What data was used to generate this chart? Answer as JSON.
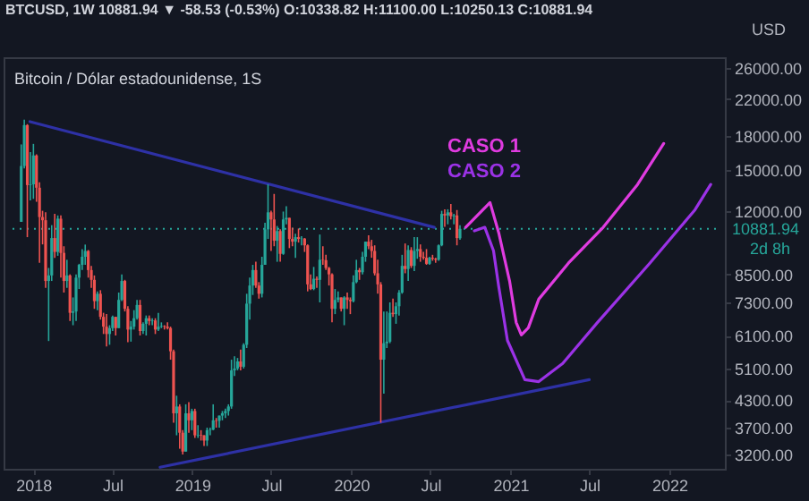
{
  "chart_data": {
    "type": "candlestick",
    "title": "BTCUSD, 1W  10881.94 ▼ -58.53 (-0.53%)  O:10338.82  H:11100.00  L:10250.13  C:10881.94",
    "subtitle": "Bitcoin / Dólar estadounidense, 1S",
    "ylabel": "USD",
    "log": true,
    "grid": false,
    "x": [
      "2017-12-04",
      "2017-12-11",
      "2017-12-18",
      "2017-12-25",
      "2018-01-01",
      "2018-01-08",
      "2018-01-15",
      "2018-01-22",
      "2018-01-29",
      "2018-02-05",
      "2018-02-12",
      "2018-02-19",
      "2018-02-26",
      "2018-03-05",
      "2018-03-12",
      "2018-03-19",
      "2018-03-26",
      "2018-04-02",
      "2018-04-09",
      "2018-04-16",
      "2018-04-23",
      "2018-04-30",
      "2018-05-07",
      "2018-05-14",
      "2018-05-21",
      "2018-05-28",
      "2018-06-04",
      "2018-06-11",
      "2018-06-18",
      "2018-06-25",
      "2018-07-02",
      "2018-07-09",
      "2018-07-16",
      "2018-07-23",
      "2018-07-30",
      "2018-08-06",
      "2018-08-13",
      "2018-08-20",
      "2018-08-27",
      "2018-09-03",
      "2018-09-10",
      "2018-09-17",
      "2018-09-24",
      "2018-10-01",
      "2018-10-08",
      "2018-10-15",
      "2018-10-22",
      "2018-10-29",
      "2018-11-05",
      "2018-11-12",
      "2018-11-19",
      "2018-11-26",
      "2018-12-03",
      "2018-12-10",
      "2018-12-17",
      "2018-12-24",
      "2018-12-31",
      "2019-01-07",
      "2019-01-14",
      "2019-01-21",
      "2019-01-28",
      "2019-02-04",
      "2019-02-11",
      "2019-02-18",
      "2019-02-25",
      "2019-03-04",
      "2019-03-11",
      "2019-03-18",
      "2019-03-25",
      "2019-04-01",
      "2019-04-08",
      "2019-04-15",
      "2019-04-22",
      "2019-04-29",
      "2019-05-06",
      "2019-05-13",
      "2019-05-20",
      "2019-05-27",
      "2019-06-03",
      "2019-06-10",
      "2019-06-17",
      "2019-06-24",
      "2019-07-01",
      "2019-07-08",
      "2019-07-15",
      "2019-07-22",
      "2019-07-29",
      "2019-08-05",
      "2019-08-12",
      "2019-08-19",
      "2019-08-26",
      "2019-09-02",
      "2019-09-09",
      "2019-09-16",
      "2019-09-23",
      "2019-09-30",
      "2019-10-07",
      "2019-10-14",
      "2019-10-21",
      "2019-10-28",
      "2019-11-04",
      "2019-11-11",
      "2019-11-18",
      "2019-11-25",
      "2019-12-02",
      "2019-12-09",
      "2019-12-16",
      "2019-12-23",
      "2019-12-30",
      "2020-01-06",
      "2020-01-13",
      "2020-01-20",
      "2020-01-27",
      "2020-02-03",
      "2020-02-10",
      "2020-02-17",
      "2020-02-24",
      "2020-03-02",
      "2020-03-09",
      "2020-03-16",
      "2020-03-23",
      "2020-03-30",
      "2020-04-06",
      "2020-04-13",
      "2020-04-20",
      "2020-04-27",
      "2020-05-04",
      "2020-05-11",
      "2020-05-18",
      "2020-05-25",
      "2020-06-01",
      "2020-06-08",
      "2020-06-15",
      "2020-06-22",
      "2020-06-29",
      "2020-07-06",
      "2020-07-13",
      "2020-07-20",
      "2020-07-27",
      "2020-08-03",
      "2020-08-10",
      "2020-08-17",
      "2020-08-24",
      "2020-08-31",
      "2020-09-07"
    ],
    "ohlc": [
      [
        11300,
        17200,
        11300,
        15300
      ],
      [
        15300,
        19666,
        15100,
        19100
      ],
      [
        19100,
        19200,
        10400,
        13800
      ],
      [
        13800,
        16500,
        12700,
        13850
      ],
      [
        13850,
        17250,
        12800,
        16200
      ],
      [
        16200,
        16300,
        12600,
        13600
      ],
      [
        13600,
        14000,
        9050,
        11600
      ],
      [
        11600,
        12000,
        10000,
        11400
      ],
      [
        11400,
        11900,
        7900,
        8200
      ],
      [
        8200,
        8800,
        5920,
        8450
      ],
      [
        8450,
        11100,
        8200,
        10350
      ],
      [
        10350,
        11800,
        9300,
        9600
      ],
      [
        9600,
        11700,
        9400,
        11500
      ],
      [
        11500,
        11700,
        8350,
        9550
      ],
      [
        9550,
        9900,
        7700,
        8200
      ],
      [
        8200,
        9200,
        7900,
        8450
      ],
      [
        8450,
        8500,
        6600,
        6900
      ],
      [
        6900,
        7500,
        6450,
        6950
      ],
      [
        6950,
        8500,
        6600,
        8350
      ],
      [
        8350,
        9000,
        7850,
        8950
      ],
      [
        8950,
        9750,
        8700,
        9350
      ],
      [
        9350,
        9990,
        8950,
        9650
      ],
      [
        9650,
        9700,
        8350,
        8700
      ],
      [
        8700,
        8900,
        7900,
        8250
      ],
      [
        8250,
        8450,
        7050,
        7350
      ],
      [
        7350,
        7750,
        7000,
        7650
      ],
      [
        7650,
        7800,
        6650,
        6750
      ],
      [
        6750,
        6900,
        6150,
        6400
      ],
      [
        6400,
        6850,
        5750,
        6150
      ],
      [
        6150,
        6450,
        5800,
        6350
      ],
      [
        6350,
        6800,
        6250,
        6750
      ],
      [
        6750,
        6750,
        6100,
        6350
      ],
      [
        6350,
        7700,
        6350,
        7400
      ],
      [
        7400,
        8500,
        7350,
        8200
      ],
      [
        8200,
        8250,
        6950,
        7050
      ],
      [
        7050,
        7150,
        5880,
        6300
      ],
      [
        6300,
        6600,
        5900,
        6400
      ],
      [
        6400,
        7000,
        6300,
        6700
      ],
      [
        6700,
        7400,
        6650,
        7200
      ],
      [
        7200,
        7400,
        6100,
        6250
      ],
      [
        6250,
        6550,
        6150,
        6500
      ],
      [
        6500,
        6800,
        6100,
        6700
      ],
      [
        6700,
        6800,
        6450,
        6600
      ],
      [
        6600,
        6700,
        6450,
        6620
      ],
      [
        6620,
        6700,
        6150,
        6300
      ],
      [
        6300,
        6900,
        6250,
        6400
      ],
      [
        6400,
        6550,
        6350,
        6420
      ],
      [
        6420,
        6450,
        6300,
        6400
      ],
      [
        6400,
        6550,
        6300,
        6350
      ],
      [
        6350,
        6400,
        5350,
        5600
      ],
      [
        5600,
        5650,
        3800,
        4000
      ],
      [
        4000,
        4400,
        3550,
        4150
      ],
      [
        4150,
        4200,
        3300,
        3600
      ],
      [
        3600,
        3650,
        3200,
        3250
      ],
      [
        3250,
        4200,
        3250,
        4000
      ],
      [
        4000,
        4250,
        3600,
        3850
      ],
      [
        3850,
        4100,
        3650,
        4050
      ],
      [
        4050,
        4100,
        3500,
        3550
      ],
      [
        3550,
        3750,
        3500,
        3560
      ],
      [
        3560,
        3650,
        3450,
        3550
      ],
      [
        3550,
        3550,
        3350,
        3450
      ],
      [
        3450,
        3700,
        3350,
        3650
      ],
      [
        3650,
        3700,
        3550,
        3660
      ],
      [
        3660,
        4200,
        3650,
        3850
      ],
      [
        3850,
        3900,
        3700,
        3840
      ],
      [
        3840,
        3950,
        3700,
        3950
      ],
      [
        3950,
        4050,
        3850,
        4000
      ],
      [
        4000,
        4100,
        3900,
        4050
      ],
      [
        4050,
        4200,
        3950,
        4150
      ],
      [
        4150,
        5350,
        4100,
        5050
      ],
      [
        5050,
        5450,
        4900,
        5100
      ],
      [
        5100,
        5400,
        5050,
        5300
      ],
      [
        5300,
        5650,
        5050,
        5150
      ],
      [
        5150,
        5850,
        5100,
        5800
      ],
      [
        5800,
        7650,
        5700,
        7250
      ],
      [
        7250,
        8350,
        6650,
        8000
      ],
      [
        8000,
        8950,
        7600,
        8700
      ],
      [
        8700,
        9100,
        7900,
        8000
      ],
      [
        8000,
        8150,
        7450,
        7650
      ],
      [
        7650,
        9350,
        7500,
        8950
      ],
      [
        8950,
        11250,
        8950,
        10850
      ],
      [
        10850,
        13850,
        10300,
        11900
      ],
      [
        11900,
        12000,
        9650,
        11450
      ],
      [
        11450,
        13150,
        9900,
        10200
      ],
      [
        10200,
        11050,
        9100,
        10750
      ],
      [
        10750,
        10850,
        9100,
        9500
      ],
      [
        9500,
        11950,
        9450,
        11450
      ],
      [
        11450,
        12300,
        11150,
        11550
      ],
      [
        11550,
        11550,
        9800,
        10300
      ],
      [
        10300,
        10950,
        9900,
        10150
      ],
      [
        10150,
        10600,
        9300,
        10400
      ],
      [
        10400,
        10900,
        10100,
        10300
      ],
      [
        10300,
        10450,
        9950,
        10320
      ],
      [
        10320,
        10350,
        9600,
        9950
      ],
      [
        9950,
        10000,
        7750,
        8050
      ],
      [
        8050,
        8500,
        7800,
        7850
      ],
      [
        7850,
        8850,
        7800,
        8300
      ],
      [
        8300,
        8400,
        7900,
        8250
      ],
      [
        8250,
        10550,
        7300,
        9200
      ],
      [
        9200,
        9900,
        8950,
        9180
      ],
      [
        9180,
        9450,
        8700,
        8800
      ],
      [
        8800,
        8850,
        8000,
        8500
      ],
      [
        8500,
        8550,
        6550,
        7050
      ],
      [
        7050,
        7850,
        6850,
        7400
      ],
      [
        7400,
        7750,
        7300,
        7500
      ],
      [
        7500,
        7500,
        6950,
        7050
      ],
      [
        7050,
        7550,
        6450,
        7500
      ],
      [
        7500,
        7700,
        7050,
        7400
      ],
      [
        7400,
        7500,
        6850,
        7350
      ],
      [
        7350,
        8450,
        7300,
        8150
      ],
      [
        8150,
        9200,
        8100,
        8700
      ],
      [
        8700,
        8800,
        8250,
        8600
      ],
      [
        8600,
        9600,
        8500,
        9350
      ],
      [
        9350,
        10150,
        9100,
        10150
      ],
      [
        10150,
        10500,
        9750,
        9900
      ],
      [
        9900,
        10250,
        9300,
        9650
      ],
      [
        9650,
        9950,
        8450,
        8550
      ],
      [
        8550,
        9200,
        7650,
        8050
      ],
      [
        8050,
        8150,
        3800,
        5350
      ],
      [
        5350,
        6950,
        4450,
        5850
      ],
      [
        5850,
        6950,
        5700,
        5900
      ],
      [
        5900,
        7300,
        5850,
        6900
      ],
      [
        6900,
        7450,
        6750,
        6850
      ],
      [
        6850,
        7300,
        6500,
        7150
      ],
      [
        7150,
        7800,
        6800,
        7700
      ],
      [
        7700,
        9450,
        7650,
        8900
      ],
      [
        8900,
        10050,
        8550,
        8750
      ],
      [
        8750,
        9950,
        8200,
        9700
      ],
      [
        9700,
        9850,
        8800,
        8900
      ],
      [
        8900,
        10400,
        8650,
        9650
      ],
      [
        9650,
        10400,
        9250,
        9750
      ],
      [
        9750,
        10000,
        9100,
        9350
      ],
      [
        9350,
        9600,
        9200,
        9300
      ],
      [
        9300,
        9750,
        8950,
        9000
      ],
      [
        9000,
        9350,
        8950,
        9300
      ],
      [
        9300,
        9450,
        9150,
        9250
      ],
      [
        9250,
        9300,
        9050,
        9200
      ],
      [
        9200,
        10000,
        9150,
        9950
      ],
      [
        9950,
        12000,
        9900,
        11800
      ],
      [
        11800,
        12100,
        11000,
        11700
      ],
      [
        11700,
        12100,
        11150,
        11900
      ],
      [
        11900,
        12450,
        11450,
        11650
      ],
      [
        11650,
        11800,
        11150,
        11700
      ],
      [
        11700,
        12050,
        9950,
        10350
      ],
      [
        10338.82,
        11100,
        10250.13,
        10881.94
      ]
    ],
    "colors": [
      "#26a69a",
      "#26a69a",
      "#ef5350",
      "#26a69a",
      "#26a69a",
      "#ef5350",
      "#ef5350",
      "#ef5350",
      "#ef5350",
      "#26a69a",
      "#26a69a",
      "#ef5350",
      "#26a69a",
      "#ef5350",
      "#ef5350",
      "#26a69a",
      "#ef5350",
      "#26a69a",
      "#26a69a",
      "#26a69a",
      "#26a69a",
      "#26a69a",
      "#ef5350",
      "#ef5350",
      "#ef5350",
      "#26a69a",
      "#ef5350",
      "#ef5350",
      "#ef5350",
      "#26a69a",
      "#26a69a",
      "#ef5350",
      "#26a69a",
      "#26a69a",
      "#ef5350",
      "#ef5350",
      "#26a69a",
      "#26a69a",
      "#26a69a",
      "#ef5350",
      "#26a69a",
      "#26a69a",
      "#ef5350",
      "#26a69a",
      "#ef5350",
      "#26a69a",
      "#26a69a",
      "#ef5350",
      "#ef5350",
      "#ef5350",
      "#ef5350",
      "#26a69a",
      "#ef5350",
      "#ef5350",
      "#26a69a",
      "#ef5350",
      "#26a69a",
      "#ef5350",
      "#26a69a",
      "#ef5350",
      "#ef5350",
      "#26a69a",
      "#26a69a",
      "#26a69a",
      "#ef5350",
      "#26a69a",
      "#26a69a",
      "#26a69a",
      "#26a69a",
      "#26a69a",
      "#26a69a",
      "#26a69a",
      "#ef5350",
      "#26a69a",
      "#26a69a",
      "#26a69a",
      "#26a69a",
      "#ef5350",
      "#ef5350",
      "#26a69a",
      "#26a69a",
      "#26a69a",
      "#ef5350",
      "#ef5350",
      "#26a69a",
      "#ef5350",
      "#26a69a",
      "#26a69a",
      "#ef5350",
      "#ef5350",
      "#26a69a",
      "#ef5350",
      "#26a69a",
      "#ef5350",
      "#ef5350",
      "#ef5350",
      "#26a69a",
      "#ef5350",
      "#26a69a",
      "#ef5350",
      "#ef5350",
      "#ef5350",
      "#ef5350",
      "#26a69a",
      "#26a69a",
      "#ef5350",
      "#26a69a",
      "#ef5350",
      "#ef5350",
      "#26a69a",
      "#26a69a",
      "#ef5350",
      "#26a69a",
      "#26a69a",
      "#ef5350",
      "#ef5350",
      "#ef5350",
      "#ef5350",
      "#ef5350",
      "#26a69a",
      "#26a69a",
      "#26a69a",
      "#ef5350",
      "#26a69a",
      "#26a69a",
      "#26a69a",
      "#ef5350",
      "#26a69a",
      "#ef5350",
      "#26a69a",
      "#26a69a",
      "#ef5350",
      "#ef5350",
      "#ef5350",
      "#26a69a",
      "#ef5350",
      "#ef5350",
      "#26a69a",
      "#26a69a",
      "#ef5350",
      "#26a69a",
      "#ef5350",
      "#26a69a",
      "#ef5350",
      "#26a69a"
    ],
    "series": [
      {
        "type": "line",
        "color": "#2e31a6",
        "x": [
          "2017-12-24",
          "2020-07-10"
        ],
        "values": [
          19460,
          10970
        ]
      },
      {
        "type": "line",
        "color": "#2e31a6",
        "x": [
          "2018-10-19",
          "2021-07-01"
        ],
        "values": [
          2985,
          4800
        ]
      },
      {
        "type": "line",
        "name": "CASO 1",
        "color": "#e03be0",
        "x": [
          "2020-09-20",
          "2020-11-15",
          "2020-12-05",
          "2020-12-30",
          "2021-01-14",
          "2021-01-26",
          "2021-02-11",
          "2021-03-07",
          "2021-05-14",
          "2021-08-02",
          "2021-10-20",
          "2021-12-19"
        ],
        "values": [
          10970,
          12550,
          10650,
          8190,
          6550,
          6120,
          6360,
          7430,
          9030,
          10970,
          13840,
          17290
        ]
      },
      {
        "type": "line",
        "name": "CASO 2",
        "color": "#9b32e6",
        "x": [
          "2020-10-10",
          "2020-11-03",
          "2020-11-23",
          "2020-12-05",
          "2020-12-25",
          "2021-02-03",
          "2021-03-07",
          "2021-05-01",
          "2021-07-20",
          "2021-11-17",
          "2022-03-01",
          "2022-04-06"
        ],
        "values": [
          10760,
          10970,
          9660,
          7960,
          5940,
          4800,
          4750,
          5240,
          6550,
          9030,
          12070,
          13840
        ]
      }
    ],
    "xlim": [
      "2017-11-14",
      "2022-04-18"
    ],
    "xticks": [
      {
        "value": "2018-01-01",
        "label": "2018"
      },
      {
        "value": "2018-07-01",
        "label": "Jul"
      },
      {
        "value": "2019-01-01",
        "label": "2019"
      },
      {
        "value": "2019-07-01",
        "label": "Jul"
      },
      {
        "value": "2020-01-01",
        "label": "2020"
      },
      {
        "value": "2020-07-01",
        "label": "Jul"
      },
      {
        "value": "2021-01-01",
        "label": "2021"
      },
      {
        "value": "2021-07-01",
        "label": "Jul"
      },
      {
        "value": "2022-01-01",
        "label": "2022"
      }
    ],
    "ylim": [
      2960,
      27600
    ],
    "yticks": [
      {
        "value": 3200,
        "label": "3200.00"
      },
      {
        "value": 3700,
        "label": "3700.00"
      },
      {
        "value": 4300,
        "label": "4300.00"
      },
      {
        "value": 5100,
        "label": "5100.00"
      },
      {
        "value": 6100,
        "label": "6100.00"
      },
      {
        "value": 7300,
        "label": "7300.00"
      },
      {
        "value": 8500,
        "label": "8500.00"
      },
      {
        "value": 12000,
        "label": "12000.00"
      },
      {
        "value": 15000,
        "label": "15000.00"
      },
      {
        "value": 18000,
        "label": "18000.00"
      },
      {
        "value": 22000,
        "label": "22000.00"
      },
      {
        "value": 26000,
        "label": "26000.00"
      }
    ],
    "ref_lines": [
      {
        "axis": "y",
        "value": 10881.94,
        "label": "10881.94",
        "color": "#26a69a",
        "line_style": "dotted"
      }
    ],
    "annotations": [
      "2d 8h"
    ]
  }
}
